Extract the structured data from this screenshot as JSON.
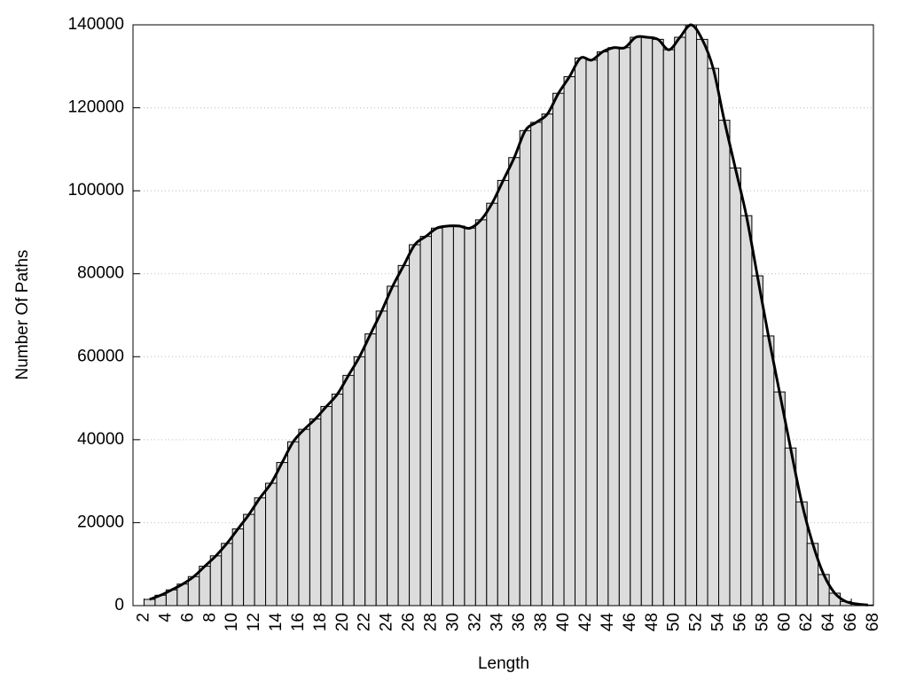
{
  "chart_data": {
    "type": "histogram",
    "x_label": "Length",
    "y_label": "Number Of Paths",
    "bins": [
      2,
      3,
      4,
      5,
      6,
      7,
      8,
      9,
      10,
      11,
      12,
      13,
      14,
      15,
      16,
      17,
      18,
      19,
      20,
      21,
      22,
      23,
      24,
      25,
      26,
      27,
      28,
      29,
      30,
      31,
      32,
      33,
      34,
      35,
      36,
      37,
      38,
      39,
      40,
      41,
      42,
      43,
      44,
      45,
      46,
      47,
      48,
      49,
      50,
      51,
      52,
      53,
      54,
      55,
      56,
      57,
      58,
      59,
      60,
      61,
      62,
      63,
      64,
      65,
      66,
      67,
      68
    ],
    "values": [
      1500,
      2500,
      3800,
      5200,
      7000,
      9500,
      12000,
      15000,
      18500,
      22000,
      26000,
      29500,
      34500,
      39500,
      42500,
      45000,
      48000,
      51000,
      55500,
      60000,
      65500,
      71000,
      77000,
      82000,
      87000,
      89000,
      91000,
      91500,
      91500,
      91000,
      93000,
      97000,
      102500,
      108000,
      114500,
      116500,
      118500,
      123500,
      127500,
      132000,
      131500,
      133500,
      134500,
      134500,
      137000,
      137000,
      136500,
      134000,
      137000,
      140000,
      136500,
      129500,
      117000,
      105500,
      94000,
      79500,
      65000,
      51500,
      38000,
      25000,
      15000,
      7500,
      3000,
      1000,
      400,
      150
    ],
    "color": "#dcdcdc",
    "line_color": "#000000",
    "smooth_line": true,
    "xlim": [
      1,
      68
    ],
    "xticks": [
      2,
      4,
      6,
      8,
      10,
      12,
      14,
      16,
      18,
      20,
      22,
      24,
      26,
      28,
      30,
      32,
      34,
      36,
      38,
      40,
      42,
      44,
      46,
      48,
      50,
      52,
      54,
      56,
      58,
      60,
      62,
      64,
      66,
      68
    ],
    "ylim": [
      0,
      140000
    ],
    "yticks": [
      0,
      20000,
      40000,
      60000,
      80000,
      100000,
      120000,
      140000
    ],
    "grid": true
  }
}
